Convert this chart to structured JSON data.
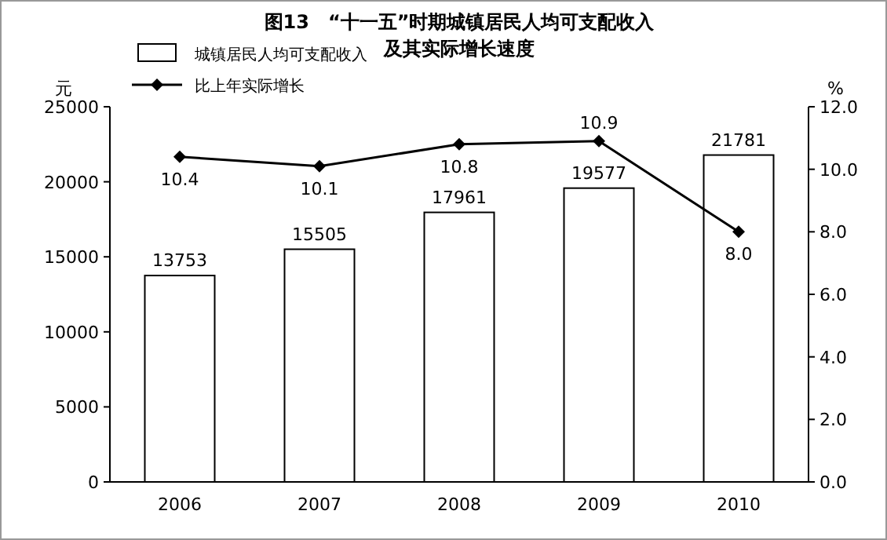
{
  "chart_data": {
    "type": "bar",
    "title": "图13　“十一五”时期城镇居民人均可支配收入",
    "subtitle": "及其实际增长速度",
    "categories": [
      "2006",
      "2007",
      "2008",
      "2009",
      "2010"
    ],
    "series": [
      {
        "name": "城镇居民人均可支配收入",
        "color": "#ffffff",
        "values": [
          13753,
          15505,
          17961,
          19577,
          21781
        ]
      },
      {
        "name": "比上年实际增长",
        "type": "line",
        "axis": "y2",
        "color": "#000000",
        "marker": "diamond",
        "values": [
          10.4,
          10.1,
          10.8,
          10.9,
          8.0
        ],
        "value_labels": [
          "10.4",
          "10.1",
          "10.8",
          "10.9",
          "8.0"
        ]
      }
    ],
    "ylabel": "元",
    "y2label": "%",
    "ylim": [
      0,
      25000
    ],
    "yticks": [
      0,
      5000,
      10000,
      15000,
      20000,
      25000
    ],
    "y2lim": [
      0,
      12
    ],
    "y2ticks": [
      {
        "value": 0,
        "label": "0.0"
      },
      {
        "value": 2,
        "label": "2.0"
      },
      {
        "value": 4,
        "label": "4.0"
      },
      {
        "value": 6,
        "label": "6.0"
      },
      {
        "value": 8,
        "label": "8.0"
      },
      {
        "value": 10,
        "label": "10.0"
      },
      {
        "value": 12,
        "label": "12.0"
      }
    ],
    "data_labels": true,
    "legend": "top left",
    "grid": false
  }
}
